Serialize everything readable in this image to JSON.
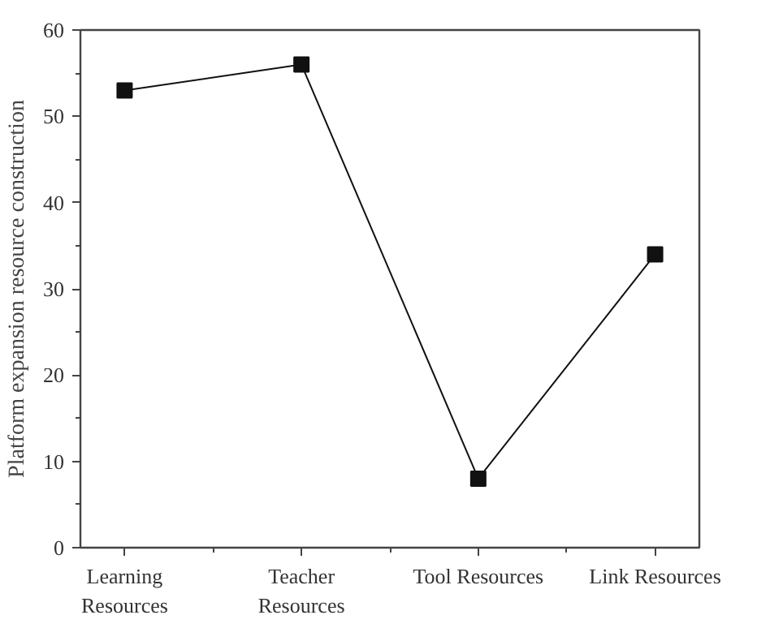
{
  "chart_data": {
    "type": "line",
    "ylabel": "Platform expansion resource construction",
    "categories": [
      "Learning Resources",
      "Teacher Resources",
      "Tool Resources",
      "Link Resources"
    ],
    "series": [
      {
        "color": "#111111",
        "values": [
          53,
          56,
          8,
          34
        ]
      }
    ],
    "ylim": [
      0,
      60
    ],
    "yticks": [
      0,
      10,
      20,
      30,
      40,
      50,
      60
    ],
    "grid": false,
    "marker": "square",
    "line_style": "solid"
  }
}
